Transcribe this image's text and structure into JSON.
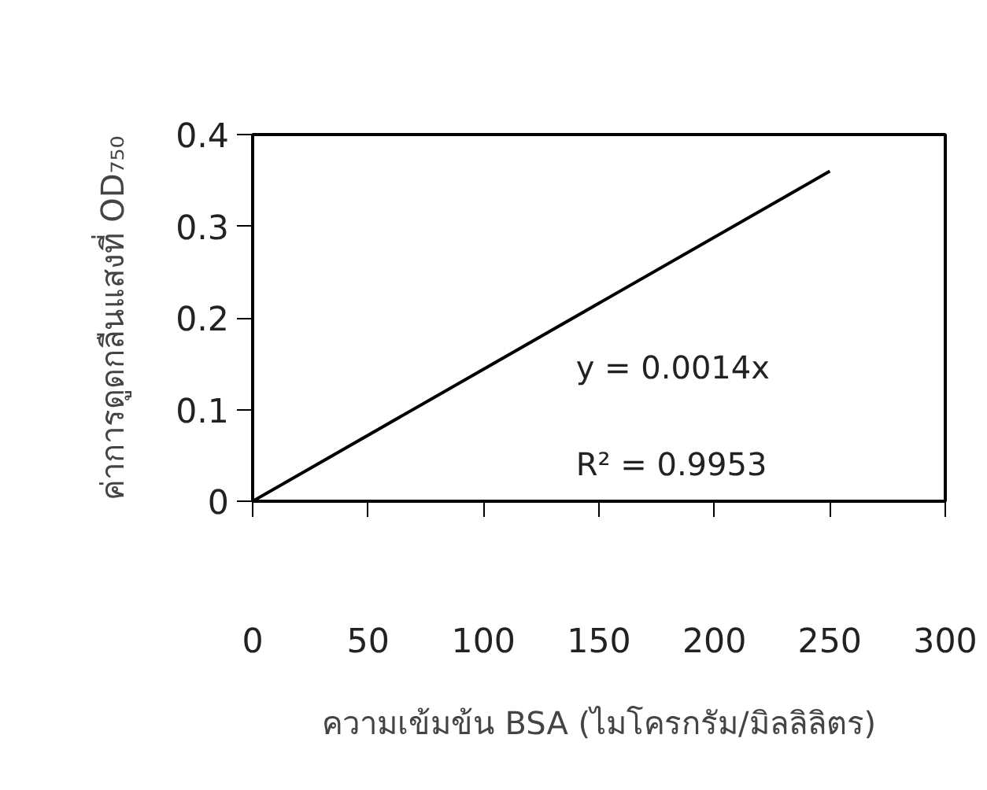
{
  "chart_data": {
    "type": "line",
    "xlabel": "ความเข้มข้น BSA (ไมโครกรัม/มิลลิลิตร)",
    "ylabel": "ค่าการดูดกลืนแสงที่ OD₇₅₀",
    "x": [
      0,
      250
    ],
    "series": [
      {
        "color": "#000000",
        "values": [
          0,
          0.36
        ]
      }
    ],
    "xlim": [
      0,
      300
    ],
    "xticks": [
      0,
      50,
      100,
      150,
      200,
      250,
      300
    ],
    "ylim": [
      0,
      0.4
    ],
    "yticks": [
      0,
      0.1,
      0.2,
      0.3,
      0.4
    ],
    "annotations": [
      "y = 0.0014x",
      "R² = 0.9953"
    ],
    "grid": false,
    "marker": "none",
    "line_style": "solid"
  }
}
